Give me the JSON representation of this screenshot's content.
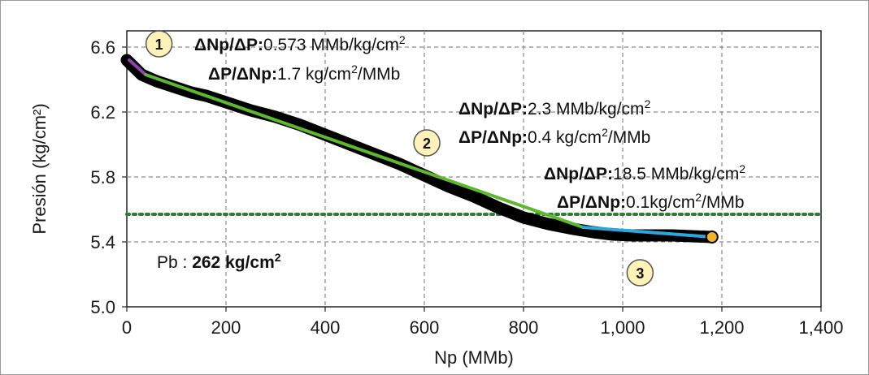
{
  "chart_data": {
    "type": "line",
    "xlabel": "Np (MMb)",
    "ylabel": "Presión (kg/cm²)",
    "xlim": [
      0,
      1400
    ],
    "ylim": [
      5.0,
      6.7
    ],
    "x_ticks": [
      0,
      200,
      400,
      600,
      800,
      1000,
      1200,
      1400
    ],
    "x_tick_labels": [
      "0",
      "200",
      "400",
      "600",
      "800",
      "1,000",
      "1,200",
      "1,400"
    ],
    "y_ticks": [
      5.0,
      5.4,
      5.8,
      6.2,
      6.6
    ],
    "y_tick_labels": [
      "5.0",
      "5.4",
      "5.8",
      "6.2",
      "6.6"
    ],
    "grid": "dashed",
    "series": [
      {
        "color": "#000000",
        "x": [
          0,
          10,
          20,
          30,
          45,
          60,
          80,
          100,
          130,
          160,
          200,
          250,
          300,
          350,
          400,
          450,
          500,
          550,
          600,
          650,
          700,
          750,
          800,
          850,
          900,
          940,
          980,
          1020,
          1060,
          1100,
          1140,
          1180
        ],
        "y": [
          6.52,
          6.49,
          6.46,
          6.43,
          6.41,
          6.39,
          6.37,
          6.35,
          6.32,
          6.3,
          6.26,
          6.21,
          6.17,
          6.12,
          6.06,
          6.0,
          5.94,
          5.88,
          5.81,
          5.74,
          5.68,
          5.61,
          5.55,
          5.51,
          5.48,
          5.46,
          5.445,
          5.44,
          5.44,
          5.44,
          5.435,
          5.43
        ]
      }
    ],
    "fit_segments": [
      {
        "label": "1",
        "color": "#8e44ad",
        "x": [
          5,
          38
        ],
        "y": [
          6.52,
          6.43
        ],
        "marker_x": 65,
        "marker_y": 6.62
      },
      {
        "label": "2",
        "color": "#5cb82c",
        "x": [
          38,
          920
        ],
        "y": [
          6.43,
          5.49
        ],
        "marker_x": 605,
        "marker_y": 6.01
      },
      {
        "label": "3",
        "color": "#29a9e0",
        "x": [
          920,
          1180
        ],
        "y": [
          5.49,
          5.43
        ],
        "marker_x": 1035,
        "marker_y": 5.21
      }
    ],
    "end_point": {
      "x": 1180,
      "y": 5.43,
      "color": "#f0b429"
    },
    "pb_line": {
      "y": 5.57,
      "color": "#2e7d32"
    },
    "annotations": {
      "seg1": {
        "l1_bold": "ΔNp/ΔP:",
        "l1_val": "0.573  MMb/kg/cm",
        "l1_sup": "2",
        "l2_bold": "ΔP/ΔNp:",
        "l2_val": "1.7 kg/cm",
        "l2_sup": "2",
        "l2_tail": "/MMb"
      },
      "seg2": {
        "l1_bold": "ΔNp/ΔP:",
        "l1_val": "2.3 MMb/kg/cm",
        "l1_sup": "2",
        "l2_bold": "ΔP/ΔNp:",
        "l2_val": "0.4 kg/cm",
        "l2_sup": "2",
        "l2_tail": "/MMb"
      },
      "seg3": {
        "l1_bold": "ΔNp/ΔP:",
        "l1_val": "18.5 MMb/kg/cm",
        "l1_sup": "2",
        "l2_bold": "ΔP/ΔNp:",
        "l2_val": "0.1kg/cm",
        "l2_sup": "2",
        "l2_tail": "/MMb"
      },
      "pb": {
        "prefix": "Pb : ",
        "value": "262 kg/cm",
        "sup": "2"
      }
    }
  }
}
